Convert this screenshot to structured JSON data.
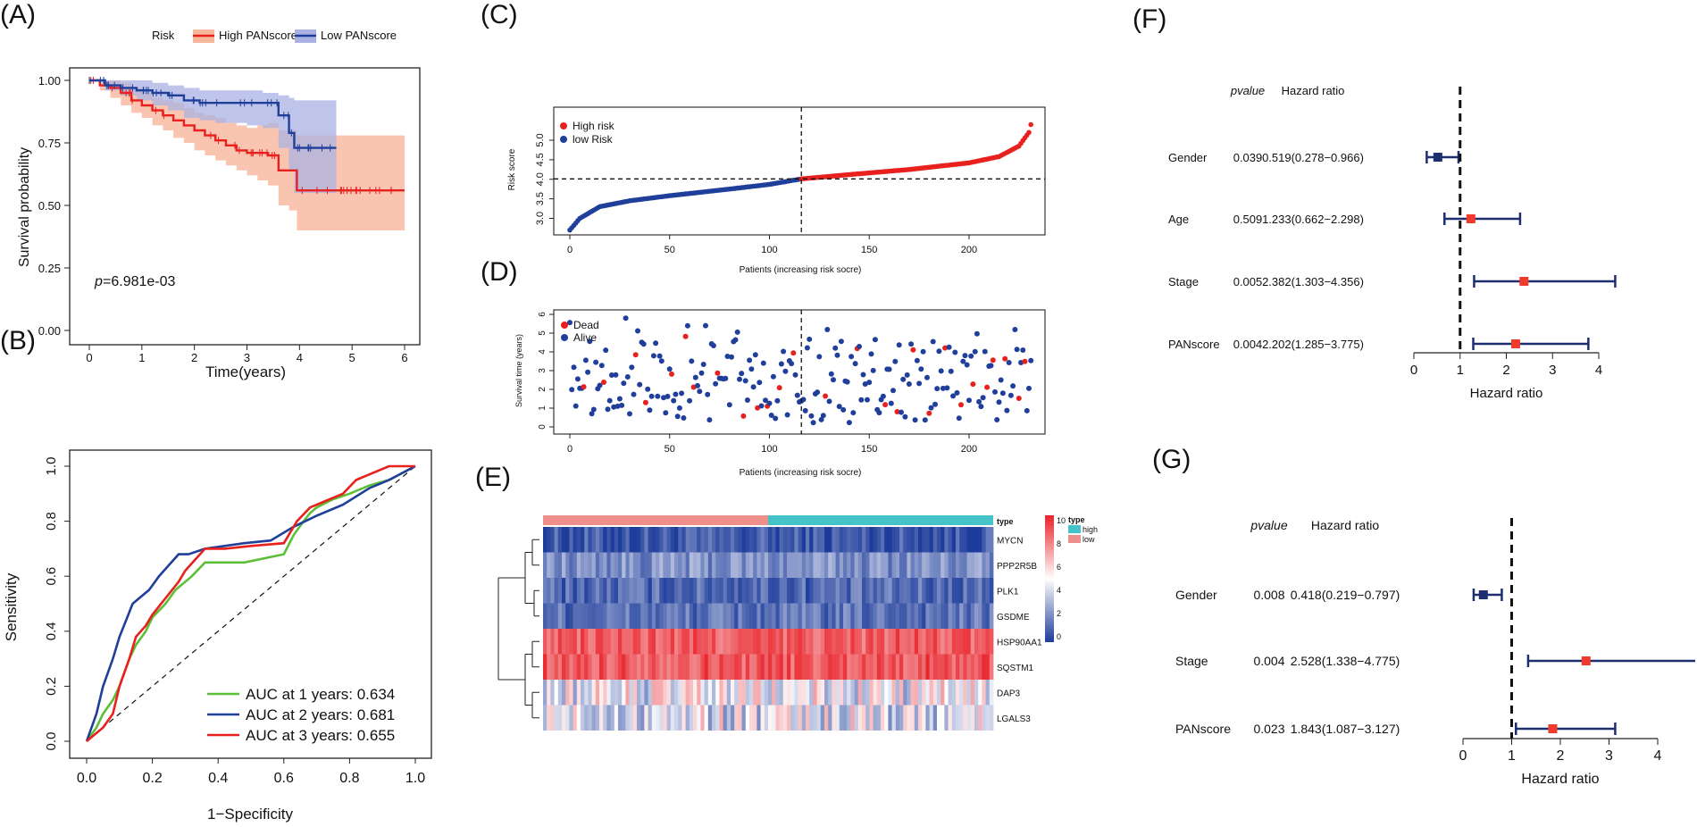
{
  "panels": {
    "A": "(A)",
    "B": "(B)",
    "C": "(C)",
    "D": "(D)",
    "E": "(E)",
    "F": "(F)",
    "G": "(G)"
  },
  "colors": {
    "high": "#e8201e",
    "low": "#1f3f9a",
    "high_band": "#f7b79c",
    "low_band": "#aab1e3",
    "green": "#5cbf37",
    "navy": "#1d2f6e",
    "forest_high": "#ee3b2e",
    "heat_low": "#1d3c9b",
    "heat_high": "#e8232a",
    "type_high": "#45c3c9",
    "type_low": "#ef8f8c"
  },
  "chart_data": [
    {
      "id": "A",
      "type": "line",
      "title": "",
      "legend": {
        "title": "Risk",
        "entries": [
          "High PANscore",
          "Low PANscore"
        ]
      },
      "xlabel": "Time(years)",
      "ylabel": "Survival probability",
      "xlim": [
        0,
        6
      ],
      "ylim": [
        0,
        1
      ],
      "xticks": [
        "0",
        "1",
        "2",
        "3",
        "4",
        "5",
        "6"
      ],
      "yticks": [
        "0.00",
        "0.25",
        "0.50",
        "0.75",
        "1.00"
      ],
      "annotation_prefix": "p",
      "annotation_value": "=6.981e-03",
      "series": [
        {
          "name": "High PANscore",
          "x": [
            0,
            0.2,
            0.4,
            0.6,
            0.8,
            1.0,
            1.2,
            1.4,
            1.6,
            1.8,
            2.0,
            2.2,
            2.4,
            2.6,
            2.8,
            3.0,
            3.2,
            3.4,
            3.6,
            3.8,
            3.95,
            4.5,
            6.0
          ],
          "y": [
            1.0,
            0.98,
            0.97,
            0.95,
            0.92,
            0.9,
            0.88,
            0.86,
            0.84,
            0.82,
            0.8,
            0.78,
            0.76,
            0.74,
            0.72,
            0.71,
            0.71,
            0.7,
            0.64,
            0.64,
            0.56,
            0.56,
            0.56
          ],
          "lower": [
            1.0,
            0.96,
            0.93,
            0.9,
            0.87,
            0.85,
            0.82,
            0.8,
            0.77,
            0.75,
            0.72,
            0.7,
            0.68,
            0.66,
            0.64,
            0.62,
            0.6,
            0.58,
            0.5,
            0.48,
            0.4,
            0.4,
            0.4
          ],
          "upper": [
            1.0,
            1.0,
            1.0,
            0.99,
            0.97,
            0.95,
            0.93,
            0.92,
            0.91,
            0.89,
            0.87,
            0.86,
            0.85,
            0.83,
            0.82,
            0.81,
            0.82,
            0.83,
            0.8,
            0.8,
            0.78,
            0.78,
            0.78
          ]
        },
        {
          "name": "Low PANscore",
          "x": [
            0,
            0.3,
            0.6,
            0.9,
            1.2,
            1.5,
            1.8,
            2.1,
            2.4,
            2.7,
            3.0,
            3.3,
            3.6,
            3.8,
            3.9,
            4.7
          ],
          "y": [
            1.0,
            0.98,
            0.97,
            0.96,
            0.95,
            0.94,
            0.92,
            0.91,
            0.91,
            0.91,
            0.91,
            0.91,
            0.86,
            0.79,
            0.73,
            0.73
          ],
          "lower": [
            1.0,
            0.96,
            0.94,
            0.92,
            0.9,
            0.88,
            0.85,
            0.84,
            0.83,
            0.83,
            0.82,
            0.81,
            0.73,
            0.64,
            0.55,
            0.55
          ],
          "upper": [
            1.0,
            1.0,
            1.0,
            1.0,
            0.99,
            0.98,
            0.97,
            0.96,
            0.96,
            0.96,
            0.96,
            0.95,
            0.94,
            0.93,
            0.92,
            0.92
          ]
        }
      ]
    },
    {
      "id": "B",
      "type": "line",
      "xlabel": "1−Specificity",
      "ylabel": "Sensitivity",
      "xlim": [
        0,
        1
      ],
      "ylim": [
        0,
        1
      ],
      "xticks": [
        "0.0",
        "0.2",
        "0.4",
        "0.6",
        "0.8",
        "1.0"
      ],
      "yticks": [
        "0.0",
        "0.2",
        "0.4",
        "0.6",
        "0.8",
        "1.0"
      ],
      "series": [
        {
          "name": "AUC at 1 years: 0.634",
          "x": [
            0,
            0.03,
            0.05,
            0.08,
            0.1,
            0.13,
            0.15,
            0.18,
            0.2,
            0.24,
            0.27,
            0.32,
            0.36,
            0.42,
            0.48,
            0.6,
            0.63,
            0.66,
            0.68,
            0.7,
            0.75,
            0.8,
            0.86,
            0.92,
            1.0
          ],
          "y": [
            0,
            0.05,
            0.1,
            0.15,
            0.2,
            0.3,
            0.35,
            0.4,
            0.45,
            0.5,
            0.55,
            0.6,
            0.65,
            0.65,
            0.65,
            0.68,
            0.75,
            0.8,
            0.83,
            0.85,
            0.88,
            0.9,
            0.93,
            0.95,
            1.0
          ]
        },
        {
          "name": "AUC at 2 years: 0.681",
          "x": [
            0,
            0.03,
            0.05,
            0.08,
            0.1,
            0.12,
            0.14,
            0.16,
            0.19,
            0.22,
            0.25,
            0.28,
            0.31,
            0.36,
            0.42,
            0.48,
            0.56,
            0.63,
            0.7,
            0.78,
            0.86,
            0.92,
            1.0
          ],
          "y": [
            0,
            0.1,
            0.2,
            0.3,
            0.38,
            0.44,
            0.5,
            0.52,
            0.55,
            0.6,
            0.64,
            0.68,
            0.68,
            0.7,
            0.71,
            0.72,
            0.73,
            0.78,
            0.82,
            0.86,
            0.92,
            0.95,
            1.0
          ]
        },
        {
          "name": "AUC at 3 years: 0.655",
          "x": [
            0,
            0.05,
            0.08,
            0.1,
            0.13,
            0.15,
            0.18,
            0.2,
            0.24,
            0.28,
            0.3,
            0.33,
            0.36,
            0.42,
            0.5,
            0.6,
            0.64,
            0.68,
            0.72,
            0.78,
            0.82,
            0.86,
            0.92,
            1.0
          ],
          "y": [
            0,
            0.05,
            0.1,
            0.2,
            0.3,
            0.38,
            0.42,
            0.46,
            0.52,
            0.58,
            0.62,
            0.66,
            0.7,
            0.7,
            0.71,
            0.72,
            0.8,
            0.85,
            0.87,
            0.9,
            0.95,
            0.97,
            1.0,
            1.0
          ]
        }
      ]
    },
    {
      "id": "C",
      "type": "scatter",
      "xlabel": "Patients (increasing risk socre)",
      "ylabel": "Risk score",
      "xlim": [
        -5,
        235
      ],
      "ylim": [
        2.6,
        5.8
      ],
      "xticks": [
        "0",
        "50",
        "100",
        "150",
        "200"
      ],
      "yticks": [
        "3.0",
        "3.5",
        "4.0",
        "4.5",
        "5.0"
      ],
      "legend": [
        "High risk",
        "low Risk"
      ],
      "n": 232,
      "cutoff_index": 116,
      "cutoff_value": 4.01,
      "risk_profile": {
        "x": [
          0,
          5,
          15,
          30,
          50,
          80,
          100,
          116,
          140,
          170,
          200,
          215,
          225,
          230,
          232
        ],
        "y": [
          2.7,
          3.0,
          3.3,
          3.45,
          3.58,
          3.75,
          3.87,
          4.01,
          4.12,
          4.25,
          4.42,
          4.58,
          4.85,
          5.2,
          5.6
        ]
      }
    },
    {
      "id": "D",
      "type": "scatter",
      "xlabel": "Patients (increasing risk socre)",
      "ylabel": "Survival time (years)",
      "xlim": [
        -5,
        235
      ],
      "ylim": [
        -0.3,
        6.1
      ],
      "xticks": [
        "0",
        "50",
        "100",
        "150",
        "200"
      ],
      "yticks": [
        "0",
        "1",
        "2",
        "3",
        "4",
        "5",
        "6"
      ],
      "legend": [
        "Dead",
        "Alive"
      ],
      "cutoff_index": 116,
      "dead_indices": [
        7,
        17,
        33,
        38,
        51,
        58,
        62,
        74,
        87,
        94,
        99,
        105,
        112,
        128,
        144,
        158,
        164,
        172,
        180,
        188,
        196,
        202,
        209,
        212,
        218,
        225,
        228
      ]
    },
    {
      "id": "E",
      "type": "heatmap",
      "genes": [
        "MYCN",
        "PPP2R5B",
        "PLK1",
        "GSDME",
        "HSP90AA1",
        "SQSTM1",
        "DAP3",
        "LGALS3"
      ],
      "group_level": [
        0.07,
        0.22,
        0.12,
        0.14,
        0.86,
        0.88,
        0.47,
        0.45
      ],
      "annotation_title": "type",
      "annotation_levels": [
        "high",
        "low"
      ],
      "scale_ticks": [
        "10",
        "8",
        "6",
        "4",
        "2",
        "0"
      ],
      "n_columns": 232,
      "low_columns": 116
    },
    {
      "id": "F",
      "type": "forest",
      "col_pvalue": "pvalue",
      "col_hr": "Hazard ratio",
      "xlabel": "Hazard ratio",
      "xlim": [
        0,
        4
      ],
      "xticks": [
        "0",
        "1",
        "2",
        "3",
        "4"
      ],
      "rows": [
        {
          "label": "Gender",
          "pvalue": "0.039",
          "hr_text": "0.519(0.278−0.966)",
          "hr": 0.519,
          "lo": 0.278,
          "hi": 0.966
        },
        {
          "label": "Age",
          "pvalue": "0.509",
          "hr_text": "1.233(0.662−2.298)",
          "hr": 1.233,
          "lo": 0.662,
          "hi": 2.298
        },
        {
          "label": "Stage",
          "pvalue": "0.005",
          "hr_text": "2.382(1.303−4.356)",
          "hr": 2.382,
          "lo": 1.303,
          "hi": 4.356
        },
        {
          "label": "PANscore",
          "pvalue": "0.004",
          "hr_text": "2.202(1.285−3.775)",
          "hr": 2.202,
          "lo": 1.285,
          "hi": 3.775
        }
      ]
    },
    {
      "id": "G",
      "type": "forest",
      "col_pvalue": "pvalue",
      "col_hr": "Hazard ratio",
      "xlabel": "Hazard ratio",
      "xlim": [
        0,
        4
      ],
      "xticks": [
        "0",
        "1",
        "2",
        "3",
        "4"
      ],
      "rows": [
        {
          "label": "Gender",
          "pvalue": "0.008",
          "hr_text": "0.418(0.219−0.797)",
          "hr": 0.418,
          "lo": 0.219,
          "hi": 0.797
        },
        {
          "label": "Stage",
          "pvalue": "0.004",
          "hr_text": "2.528(1.338−4.775)",
          "hr": 2.528,
          "lo": 1.338,
          "hi": 4.775
        },
        {
          "label": "PANscore",
          "pvalue": "0.023",
          "hr_text": "1.843(1.087−3.127)",
          "hr": 1.843,
          "lo": 1.087,
          "hi": 3.127
        }
      ]
    }
  ]
}
